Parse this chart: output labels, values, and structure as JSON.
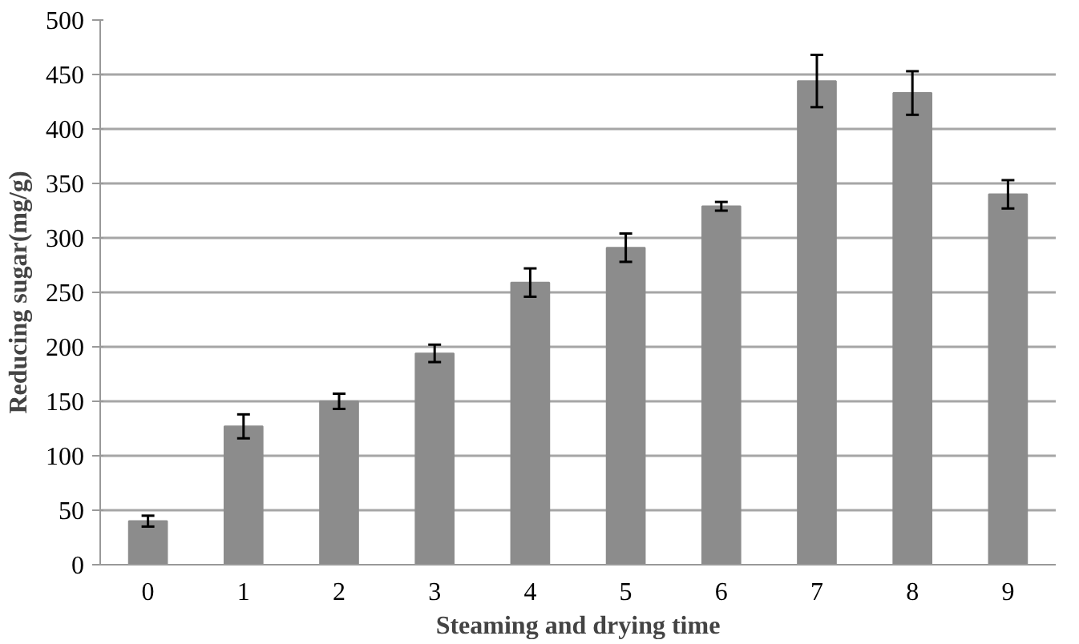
{
  "chart_data": {
    "type": "bar",
    "xlabel": "Steaming and drying time",
    "ylabel": "Reducing sugar(mg/g)",
    "categories": [
      "0",
      "1",
      "2",
      "3",
      "4",
      "5",
      "6",
      "7",
      "8",
      "9"
    ],
    "values": [
      40,
      127,
      150,
      194,
      259,
      291,
      329,
      444,
      433,
      340
    ],
    "errors": [
      5,
      11,
      7,
      8,
      13,
      13,
      4,
      24,
      20,
      13
    ],
    "color": "#8c8c8c",
    "ylim": [
      0,
      500
    ],
    "yticks": [
      0,
      50,
      100,
      150,
      200,
      250,
      300,
      350,
      400,
      450,
      500
    ],
    "grid": "y"
  }
}
